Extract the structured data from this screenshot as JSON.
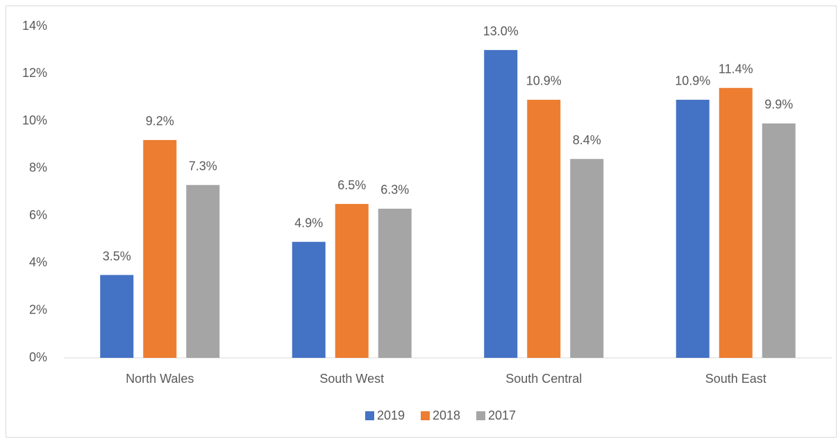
{
  "chart_data": {
    "type": "bar",
    "categories": [
      "North Wales",
      "South West",
      "South Central",
      "South East"
    ],
    "series": [
      {
        "name": "2019",
        "color": "#4472c4",
        "values": [
          3.5,
          4.9,
          13.0,
          10.9
        ],
        "value_labels": [
          "3.5%",
          "4.9%",
          "13.0%",
          "10.9%"
        ]
      },
      {
        "name": "2018",
        "color": "#ed7d31",
        "values": [
          9.2,
          6.5,
          10.9,
          11.4
        ],
        "value_labels": [
          "9.2%",
          "6.5%",
          "10.9%",
          "11.4%"
        ]
      },
      {
        "name": "2017",
        "color": "#a5a5a5",
        "values": [
          7.3,
          6.3,
          8.4,
          9.9
        ],
        "value_labels": [
          "7.3%",
          "6.3%",
          "8.4%",
          "9.9%"
        ]
      }
    ],
    "ylim": [
      0,
      14
    ],
    "yticks": [
      {
        "value": 0,
        "label": "0%"
      },
      {
        "value": 2,
        "label": "2%"
      },
      {
        "value": 4,
        "label": "4%"
      },
      {
        "value": 6,
        "label": "6%"
      },
      {
        "value": 8,
        "label": "8%"
      },
      {
        "value": 10,
        "label": "10%"
      },
      {
        "value": 12,
        "label": "12%"
      },
      {
        "value": 14,
        "label": "14%"
      }
    ],
    "grid": false,
    "legend": "bottom"
  }
}
